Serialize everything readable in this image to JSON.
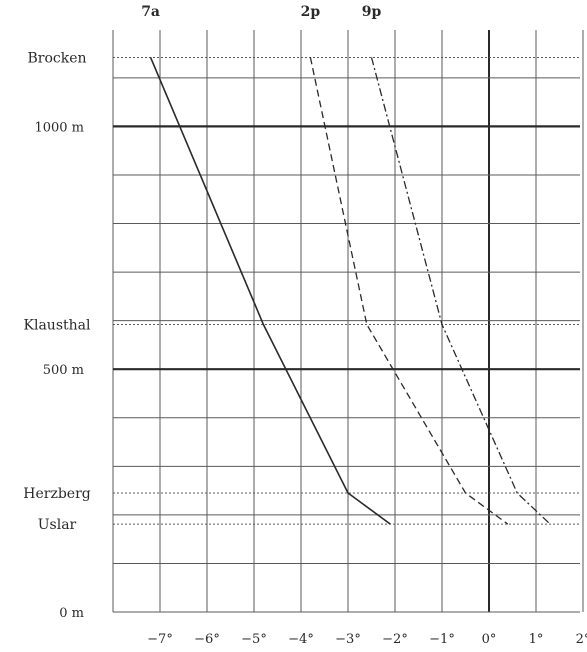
{
  "chart_data": {
    "type": "line",
    "title": "",
    "xlabel": "",
    "ylabel": "",
    "xlim": [
      -8,
      2
    ],
    "ylim": [
      0,
      1150
    ],
    "x_ticks": [
      {
        "v": -7,
        "label": "−7°"
      },
      {
        "v": -6,
        "label": "−6°"
      },
      {
        "v": -5,
        "label": "−5°"
      },
      {
        "v": -4,
        "label": "−4°"
      },
      {
        "v": -3,
        "label": "−3°"
      },
      {
        "v": -2,
        "label": "−2°"
      },
      {
        "v": -1,
        "label": "−1°"
      },
      {
        "v": 0,
        "label": "0°"
      },
      {
        "v": 1,
        "label": "1°"
      },
      {
        "v": 2,
        "label": "2°"
      }
    ],
    "y_ticks": [
      {
        "v": 0,
        "label": "0 m"
      },
      {
        "v": 500,
        "label": "500 m"
      },
      {
        "v": 1000,
        "label": "1000 m"
      }
    ],
    "stations": [
      {
        "name": "Brocken",
        "altitude": 1142
      },
      {
        "name": "Klausthal",
        "altitude": 592
      },
      {
        "name": "Herzberg",
        "altitude": 245
      },
      {
        "name": "Uslar",
        "altitude": 181
      }
    ],
    "series": [
      {
        "name": "7a",
        "style": "solid",
        "values": [
          -7.2,
          -4.8,
          -3.0,
          -2.1
        ]
      },
      {
        "name": "2p",
        "style": "dashed",
        "values": [
          -3.8,
          -2.6,
          -0.5,
          0.4
        ]
      },
      {
        "name": "9p",
        "style": "dashdot",
        "values": [
          -2.5,
          -1.0,
          0.6,
          1.3
        ]
      }
    ],
    "grid": true,
    "legend": "top"
  },
  "colors": {
    "ink": "#2a2a2a",
    "grid": "#5a5a5a",
    "background": "#ffffff"
  }
}
